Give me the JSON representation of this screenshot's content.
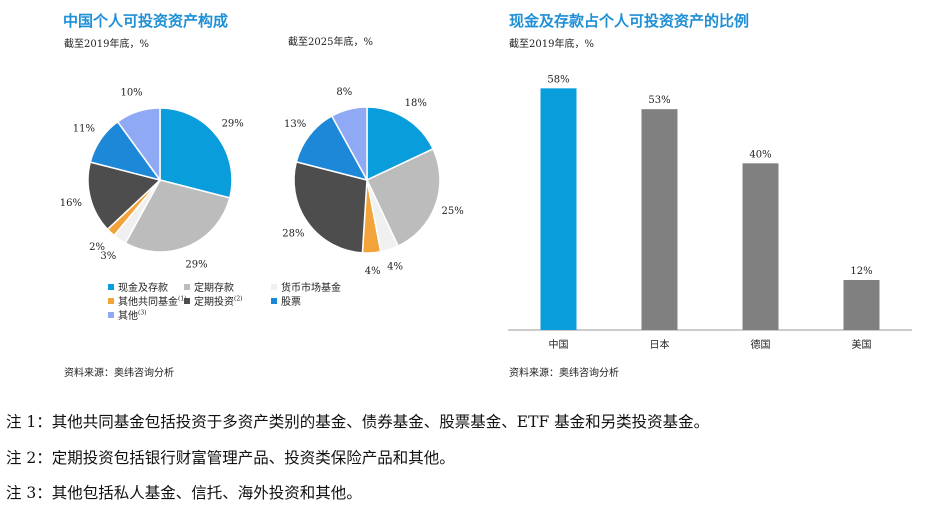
{
  "left_title": "中国个人可投资资产构成",
  "right_title": "现金及存款占个人可投资资产的比例",
  "source_left": "资料来源：奥纬咨询分析",
  "source_right": "资料来源：奥纬咨询分析",
  "legend": [
    {
      "label": "现金及存款",
      "sup": "",
      "color": "#0a9ddb"
    },
    {
      "label": "定期存款",
      "sup": "",
      "color": "#bcbcbc"
    },
    {
      "label": "货币市场基金",
      "sup": "",
      "color": "#f0f0f0"
    },
    {
      "label": "其他共同基金",
      "sup": "(1)",
      "color": "#f2a33a"
    },
    {
      "label": "定期投资",
      "sup": "(2)",
      "color": "#4d4d4d"
    },
    {
      "label": "股票",
      "sup": "",
      "color": "#1e88d8"
    },
    {
      "label": "其他",
      "sup": "(3)",
      "color": "#8fa9f5"
    }
  ],
  "notes": [
    "注 1：其他共同基金包括投资于多资产类别的基金、债券基金、股票基金、ETF 基金和另类投资基金。",
    "注 2：定期投资包括银行财富管理产品、投资类保险产品和其他。",
    "注 3：其他包括私人基金、信托、海外投资和其他。"
  ],
  "chart_data": [
    {
      "type": "pie",
      "subtitle": "截至2019年底，%",
      "labels": [
        "现金及存款",
        "定期存款",
        "货币市场基金",
        "其他共同基金",
        "定期投资",
        "股票",
        "其他"
      ],
      "values": [
        29,
        29,
        3,
        2,
        16,
        11,
        10
      ],
      "value_labels": [
        "29%",
        "29%",
        "3%",
        "2%",
        "16%",
        "11%",
        "10%"
      ],
      "colors": [
        "#0a9ddb",
        "#bcbcbc",
        "#f0f0f0",
        "#f2a33a",
        "#4d4d4d",
        "#1e88d8",
        "#8fa9f5"
      ]
    },
    {
      "type": "pie",
      "subtitle": "截至2025年底，%",
      "labels": [
        "现金及存款",
        "定期存款",
        "货币市场基金",
        "其他共同基金",
        "定期投资",
        "股票",
        "其他"
      ],
      "values": [
        18,
        25,
        4,
        4,
        28,
        13,
        8
      ],
      "value_labels": [
        "18%",
        "25%",
        "4%",
        "4%",
        "28%",
        "13%",
        "8%"
      ],
      "colors": [
        "#0a9ddb",
        "#bcbcbc",
        "#f0f0f0",
        "#f2a33a",
        "#4d4d4d",
        "#1e88d8",
        "#8fa9f5"
      ]
    },
    {
      "type": "bar",
      "subtitle": "截至2019年底，%",
      "categories": [
        "中国",
        "日本",
        "德国",
        "美国"
      ],
      "values": [
        58,
        53,
        40,
        12
      ],
      "value_labels": [
        "58%",
        "53%",
        "40%",
        "12%"
      ],
      "colors": [
        "#0a9ddb",
        "#808080",
        "#808080",
        "#808080"
      ],
      "ylim": [
        0,
        60
      ]
    }
  ]
}
